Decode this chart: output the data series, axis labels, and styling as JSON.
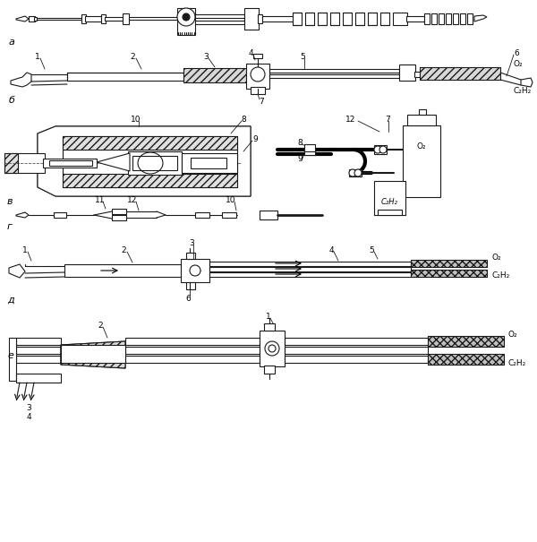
{
  "bg_color": "#ffffff",
  "lc": "#1a1a1a",
  "fig_w": 6.0,
  "fig_h": 6.05,
  "la": "а",
  "lb": "б",
  "lv": "в",
  "lg": "г",
  "ld": "д",
  "le": "е",
  "O2": "O₂",
  "C2H2": "C₂H₂"
}
